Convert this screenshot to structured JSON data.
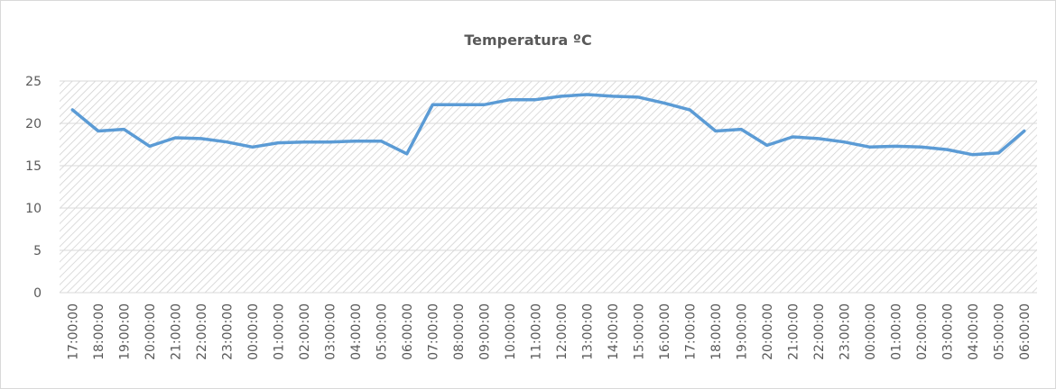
{
  "chart_data": {
    "type": "line",
    "title": "Temperatura ºC",
    "categories": [
      "17:00:00",
      "18:00:00",
      "19:00:00",
      "20:00:00",
      "21:00:00",
      "22:00:00",
      "23:00:00",
      "00:00:00",
      "01:00:00",
      "02:00:00",
      "03:00:00",
      "04:00:00",
      "05:00:00",
      "06:00:00",
      "07:00:00",
      "08:00:00",
      "09:00:00",
      "10:00:00",
      "11:00:00",
      "12:00:00",
      "13:00:00",
      "14:00:00",
      "15:00:00",
      "16:00:00",
      "17:00:00",
      "18:00:00",
      "19:00:00",
      "20:00:00",
      "21:00:00",
      "22:00:00",
      "23:00:00",
      "00:00:00",
      "01:00:00",
      "02:00:00",
      "03:00:00",
      "04:00:00",
      "05:00:00",
      "06:00:00"
    ],
    "series": [
      {
        "name": "Temperatura",
        "color": "#5b9bd5",
        "values": [
          21.6,
          19.1,
          19.3,
          17.3,
          18.3,
          18.2,
          17.8,
          17.2,
          17.7,
          17.8,
          17.8,
          17.9,
          17.9,
          16.4,
          22.2,
          22.2,
          22.2,
          22.8,
          22.8,
          23.2,
          23.4,
          23.2,
          23.1,
          22.4,
          21.6,
          19.1,
          19.3,
          17.4,
          18.4,
          18.2,
          17.8,
          17.2,
          17.3,
          17.2,
          16.9,
          16.3,
          16.5,
          19.1
        ]
      }
    ],
    "ylim": [
      0,
      25
    ],
    "yticks": [
      0,
      5,
      10,
      15,
      20,
      25
    ],
    "grid": true
  }
}
